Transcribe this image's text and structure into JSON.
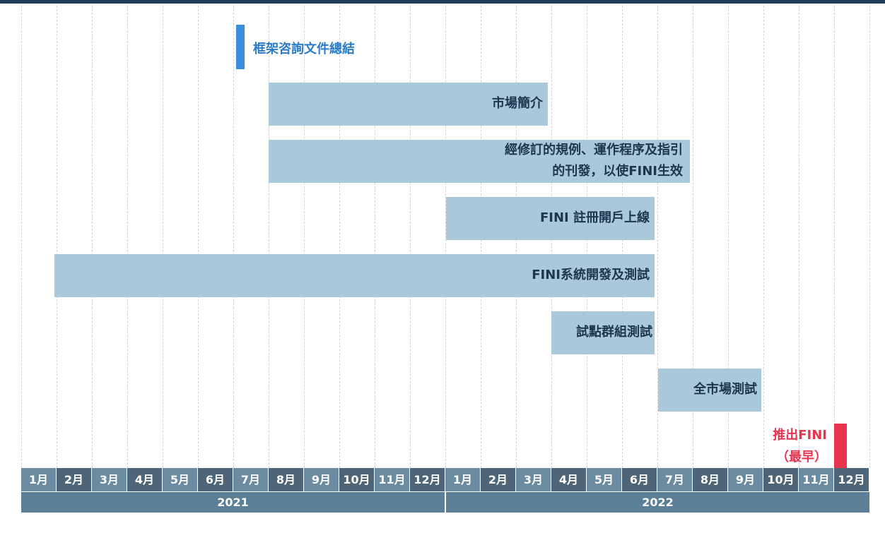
{
  "months": [
    "1月",
    "2月",
    "3月",
    "4月",
    "5月",
    "6月",
    "7月",
    "8月",
    "9月",
    "10月",
    "11月",
    "12月",
    "1月",
    "2月",
    "3月",
    "4月",
    "5月",
    "6月",
    "7月",
    "8月",
    "9月",
    "10月",
    "11月",
    "12月"
  ],
  "years": [
    "2021",
    "2022"
  ],
  "tasks": [
    {
      "label": "框架咨詢文件總結"
    },
    {
      "label": "市場簡介"
    },
    {
      "lines": [
        "經修訂的規例、運作程序及指引",
        "的刊發，以使FINI生效"
      ]
    },
    {
      "label": "FINI 註冊開戶上線"
    },
    {
      "label": "FINI系統開發及測試"
    },
    {
      "label": "試點群組測試"
    },
    {
      "label": "全市場測試"
    },
    {
      "lines": [
        "推出FINI",
        "（最早）"
      ]
    }
  ]
}
